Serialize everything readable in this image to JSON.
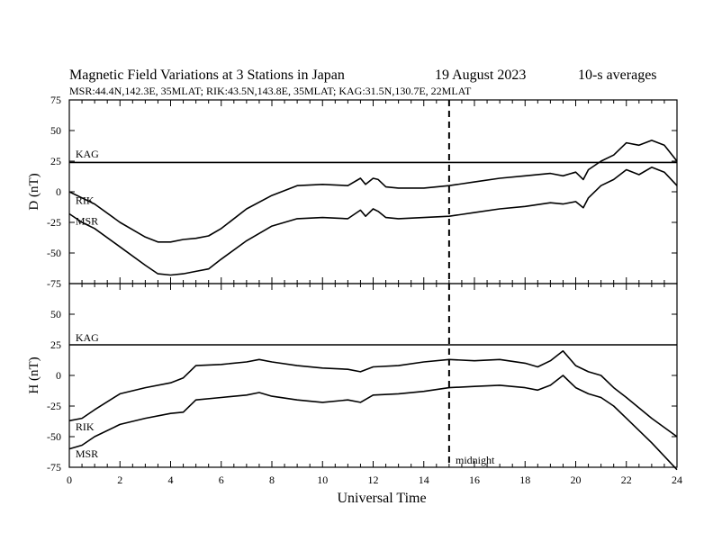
{
  "title": "Magnetic Field Variations at 3 Stations in Japan",
  "date": "19  August  2023",
  "averaging": "10-s averages",
  "subtitle": "MSR:44.4N,142.3E, 35MLAT;  RIK:43.5N,143.8E, 35MLAT;  KAG:31.5N,130.7E, 22MLAT",
  "xlabel": "Universal Time",
  "midnight_label": "midnight",
  "colors": {
    "line": "#000000",
    "background": "#ffffff"
  },
  "chart_data": [
    {
      "type": "line",
      "panel": "top",
      "ylabel": "D (nT)",
      "xlim": [
        0,
        24
      ],
      "ylim": [
        -75,
        75
      ],
      "xticks": [
        0,
        2,
        4,
        6,
        8,
        10,
        12,
        14,
        16,
        18,
        20,
        22,
        24
      ],
      "yticks": [
        -75,
        -50,
        -25,
        0,
        25,
        50,
        75
      ],
      "midnight_x": 15,
      "series": [
        {
          "name": "KAG",
          "label_at": [
            0.1,
            28
          ],
          "x": [
            0,
            24
          ],
          "y": [
            24,
            24
          ]
        },
        {
          "name": "RIK",
          "label_at": [
            0.1,
            -10
          ],
          "x": [
            0,
            0.5,
            1,
            2,
            3,
            3.5,
            4,
            4.5,
            5,
            5.5,
            6,
            7,
            8,
            9,
            10,
            11,
            11.5,
            11.7,
            12,
            12.2,
            12.5,
            13,
            14,
            15,
            16,
            17,
            18,
            19,
            19.5,
            20,
            20.3,
            20.5,
            21,
            21.5,
            22,
            22.5,
            23,
            23.5,
            24
          ],
          "y": [
            0,
            -5,
            -10,
            -25,
            -37,
            -41,
            -41,
            -39,
            -38,
            -36,
            -30,
            -14,
            -3,
            5,
            6,
            5,
            11,
            6,
            11,
            10,
            4,
            3,
            3,
            5,
            8,
            11,
            13,
            15,
            13,
            16,
            10,
            18,
            25,
            30,
            40,
            38,
            42,
            38,
            25
          ]
        },
        {
          "name": "MSR",
          "label_at": [
            0.1,
            -27
          ],
          "x": [
            0,
            0.5,
            1,
            2,
            3,
            3.5,
            4,
            4.5,
            5,
            5.5,
            6,
            7,
            8,
            9,
            10,
            11,
            11.5,
            11.7,
            12,
            12.2,
            12.5,
            13,
            14,
            15,
            16,
            17,
            18,
            19,
            19.5,
            20,
            20.3,
            20.5,
            21,
            21.5,
            22,
            22.5,
            23,
            23.5,
            24
          ],
          "y": [
            -18,
            -25,
            -30,
            -45,
            -60,
            -67,
            -68,
            -67,
            -65,
            -63,
            -55,
            -40,
            -28,
            -22,
            -21,
            -22,
            -15,
            -20,
            -14,
            -16,
            -21,
            -22,
            -21,
            -20,
            -17,
            -14,
            -12,
            -9,
            -10,
            -8,
            -13,
            -5,
            5,
            10,
            18,
            14,
            20,
            16,
            5
          ]
        }
      ]
    },
    {
      "type": "line",
      "panel": "bottom",
      "ylabel": "H (nT)",
      "xlabel": "Universal Time",
      "xlim": [
        0,
        24
      ],
      "ylim": [
        -75,
        75
      ],
      "xticks": [
        0,
        2,
        4,
        6,
        8,
        10,
        12,
        14,
        16,
        18,
        20,
        22,
        24
      ],
      "yticks": [
        -75,
        -50,
        -25,
        0,
        25,
        50,
        75
      ],
      "midnight_x": 15,
      "series": [
        {
          "name": "KAG",
          "label_at": [
            0.1,
            28
          ],
          "x": [
            0,
            24
          ],
          "y": [
            25,
            25
          ]
        },
        {
          "name": "RIK",
          "label_at": [
            0.1,
            -45
          ],
          "x": [
            0,
            0.5,
            1,
            2,
            3,
            4,
            4.5,
            5,
            6,
            7,
            7.5,
            8,
            9,
            10,
            11,
            11.5,
            12,
            13,
            14,
            15,
            16,
            17,
            18,
            18.5,
            19,
            19.5,
            20,
            20.5,
            21,
            21.5,
            22,
            23,
            24
          ],
          "y": [
            -37,
            -35,
            -28,
            -15,
            -10,
            -6,
            -2,
            8,
            9,
            11,
            13,
            11,
            8,
            6,
            5,
            3,
            7,
            8,
            11,
            13,
            12,
            13,
            10,
            7,
            12,
            20,
            8,
            3,
            0,
            -10,
            -18,
            -35,
            -50
          ]
        },
        {
          "name": "MSR",
          "label_at": [
            0.1,
            -67
          ],
          "x": [
            0,
            0.5,
            1,
            2,
            3,
            4,
            4.5,
            5,
            6,
            7,
            7.5,
            8,
            9,
            10,
            11,
            11.5,
            12,
            13,
            14,
            15,
            16,
            17,
            18,
            18.5,
            19,
            19.5,
            20,
            20.5,
            21,
            21.5,
            22,
            23,
            24
          ],
          "y": [
            -60,
            -57,
            -50,
            -40,
            -35,
            -31,
            -30,
            -20,
            -18,
            -16,
            -14,
            -17,
            -20,
            -22,
            -20,
            -22,
            -16,
            -15,
            -13,
            -10,
            -9,
            -8,
            -10,
            -12,
            -8,
            0,
            -10,
            -15,
            -18,
            -25,
            -35,
            -55,
            -77
          ]
        }
      ]
    }
  ]
}
